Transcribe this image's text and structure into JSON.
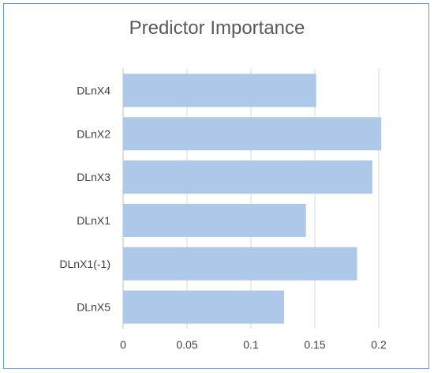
{
  "chart_data": {
    "type": "bar",
    "orientation": "horizontal",
    "title": "Predictor Importance",
    "categories": [
      "DLnX4",
      "DLnX2",
      "DLnX3",
      "DLnX1",
      "DLnX1(-1)",
      "DLnX5"
    ],
    "values": [
      0.151,
      0.202,
      0.195,
      0.143,
      0.183,
      0.126
    ],
    "xlim": [
      0,
      0.2
    ],
    "xticks": [
      "0",
      "0.05",
      "0.1",
      "0.15",
      "0.2"
    ],
    "grid": true,
    "bar_color": "#adc8e8",
    "grid_color": "#d9d9d9",
    "frame_color": "#5b9bd5"
  }
}
